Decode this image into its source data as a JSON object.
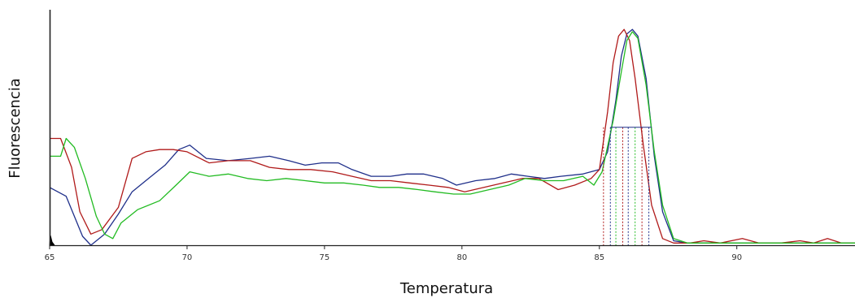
{
  "chart_data": {
    "type": "line",
    "xlabel": "Temperatura",
    "ylabel": "Fluorescencia",
    "xlim": [
      65,
      94.3
    ],
    "ylim": [
      0,
      100
    ],
    "x_ticks": [
      "65",
      "70",
      "75",
      "80",
      "85",
      "90"
    ],
    "grid": false,
    "legend": "none",
    "series": [
      {
        "color": "#1f2f8a",
        "points": [
          [
            65,
            26
          ],
          [
            65.6,
            22
          ],
          [
            66.2,
            4
          ],
          [
            66.5,
            0
          ],
          [
            67,
            5
          ],
          [
            67.5,
            14
          ],
          [
            68,
            24
          ],
          [
            68.6,
            30
          ],
          [
            69.2,
            36
          ],
          [
            69.7,
            43
          ],
          [
            70.1,
            45
          ],
          [
            70.7,
            39
          ],
          [
            71.5,
            38
          ],
          [
            72.3,
            39
          ],
          [
            73,
            40
          ],
          [
            73.7,
            38
          ],
          [
            74.3,
            36
          ],
          [
            74.9,
            37
          ],
          [
            75.5,
            37
          ],
          [
            76,
            34
          ],
          [
            76.7,
            31
          ],
          [
            77.4,
            31
          ],
          [
            78,
            32
          ],
          [
            78.6,
            32
          ],
          [
            79.3,
            30
          ],
          [
            79.8,
            27
          ],
          [
            80.5,
            29
          ],
          [
            81.2,
            30
          ],
          [
            81.8,
            32
          ],
          [
            82.4,
            31
          ],
          [
            83,
            30
          ],
          [
            83.6,
            31
          ],
          [
            84.4,
            32
          ],
          [
            85.0,
            34
          ],
          [
            85.3,
            42
          ],
          [
            85.6,
            65
          ],
          [
            85.8,
            85
          ],
          [
            86.0,
            95
          ],
          [
            86.2,
            97
          ],
          [
            86.4,
            94
          ],
          [
            86.7,
            75
          ],
          [
            87.0,
            40
          ],
          [
            87.3,
            15
          ],
          [
            87.7,
            2
          ],
          [
            88.2,
            1
          ],
          [
            89,
            1
          ],
          [
            90,
            1
          ],
          [
            91,
            1
          ],
          [
            92,
            1
          ],
          [
            93,
            1
          ],
          [
            94.3,
            1
          ]
        ]
      },
      {
        "color": "#b01a1a",
        "points": [
          [
            65,
            48
          ],
          [
            65.4,
            48
          ],
          [
            65.8,
            35
          ],
          [
            66.1,
            15
          ],
          [
            66.5,
            5
          ],
          [
            66.9,
            7
          ],
          [
            67.5,
            17
          ],
          [
            68,
            39
          ],
          [
            68.5,
            42
          ],
          [
            69,
            43
          ],
          [
            69.5,
            43
          ],
          [
            70,
            42
          ],
          [
            70.8,
            37
          ],
          [
            71.5,
            38
          ],
          [
            72.3,
            38
          ],
          [
            73,
            35
          ],
          [
            73.7,
            34
          ],
          [
            74.5,
            34
          ],
          [
            75.3,
            33
          ],
          [
            76,
            31
          ],
          [
            76.7,
            29
          ],
          [
            77.4,
            29
          ],
          [
            78.1,
            28
          ],
          [
            78.8,
            27
          ],
          [
            79.5,
            26
          ],
          [
            80.1,
            24
          ],
          [
            80.8,
            26
          ],
          [
            81.5,
            28
          ],
          [
            82.2,
            30
          ],
          [
            82.8,
            30
          ],
          [
            83.5,
            25
          ],
          [
            84.1,
            27
          ],
          [
            84.7,
            30
          ],
          [
            85,
            34
          ],
          [
            85.3,
            60
          ],
          [
            85.5,
            82
          ],
          [
            85.7,
            94
          ],
          [
            85.9,
            97
          ],
          [
            86.1,
            92
          ],
          [
            86.3,
            75
          ],
          [
            86.6,
            45
          ],
          [
            86.9,
            18
          ],
          [
            87.3,
            3
          ],
          [
            87.7,
            1
          ],
          [
            88.3,
            1
          ],
          [
            88.8,
            2
          ],
          [
            89.4,
            1
          ],
          [
            90.2,
            3
          ],
          [
            90.8,
            1
          ],
          [
            91.6,
            1
          ],
          [
            92.3,
            2
          ],
          [
            92.8,
            1
          ],
          [
            93.3,
            3
          ],
          [
            93.8,
            1
          ],
          [
            94.3,
            1
          ]
        ]
      },
      {
        "color": "#22bb22",
        "points": [
          [
            65,
            40
          ],
          [
            65.4,
            40
          ],
          [
            65.6,
            48
          ],
          [
            65.9,
            44
          ],
          [
            66.3,
            30
          ],
          [
            66.7,
            13
          ],
          [
            67,
            5
          ],
          [
            67.3,
            3
          ],
          [
            67.6,
            10
          ],
          [
            68.2,
            16
          ],
          [
            69,
            20
          ],
          [
            69.6,
            27
          ],
          [
            70.1,
            33
          ],
          [
            70.8,
            31
          ],
          [
            71.5,
            32
          ],
          [
            72.2,
            30
          ],
          [
            72.9,
            29
          ],
          [
            73.6,
            30
          ],
          [
            74.3,
            29
          ],
          [
            75,
            28
          ],
          [
            75.7,
            28
          ],
          [
            76.4,
            27
          ],
          [
            77,
            26
          ],
          [
            77.7,
            26
          ],
          [
            78.4,
            25
          ],
          [
            79,
            24
          ],
          [
            79.7,
            23
          ],
          [
            80.3,
            23
          ],
          [
            81,
            25
          ],
          [
            81.7,
            27
          ],
          [
            82.3,
            30
          ],
          [
            83,
            29
          ],
          [
            83.7,
            29
          ],
          [
            84.4,
            31
          ],
          [
            84.8,
            27
          ],
          [
            85.1,
            33
          ],
          [
            85.5,
            56
          ],
          [
            85.8,
            78
          ],
          [
            86.0,
            92
          ],
          [
            86.2,
            96
          ],
          [
            86.4,
            93
          ],
          [
            86.7,
            72
          ],
          [
            87.0,
            42
          ],
          [
            87.3,
            18
          ],
          [
            87.7,
            3
          ],
          [
            88.2,
            1
          ],
          [
            89,
            1
          ],
          [
            90,
            1
          ],
          [
            91,
            1
          ],
          [
            92,
            1
          ],
          [
            93,
            1
          ],
          [
            94.3,
            1
          ]
        ]
      }
    ],
    "peak_markers": [
      {
        "x": 85.15,
        "color": "#b01a1a"
      },
      {
        "x": 85.4,
        "color": "#1f2f8a"
      },
      {
        "x": 85.6,
        "color": "#22bb22"
      },
      {
        "x": 85.85,
        "color": "#b01a1a"
      },
      {
        "x": 86.05,
        "color": "#1f2f8a"
      },
      {
        "x": 86.3,
        "color": "#22bb22"
      },
      {
        "x": 86.55,
        "color": "#b01a1a"
      },
      {
        "x": 86.8,
        "color": "#1f2f8a"
      }
    ],
    "half_width_line": {
      "x_start": 85.4,
      "x_end": 86.9,
      "y": 53,
      "color": "#1f2f8a"
    }
  }
}
